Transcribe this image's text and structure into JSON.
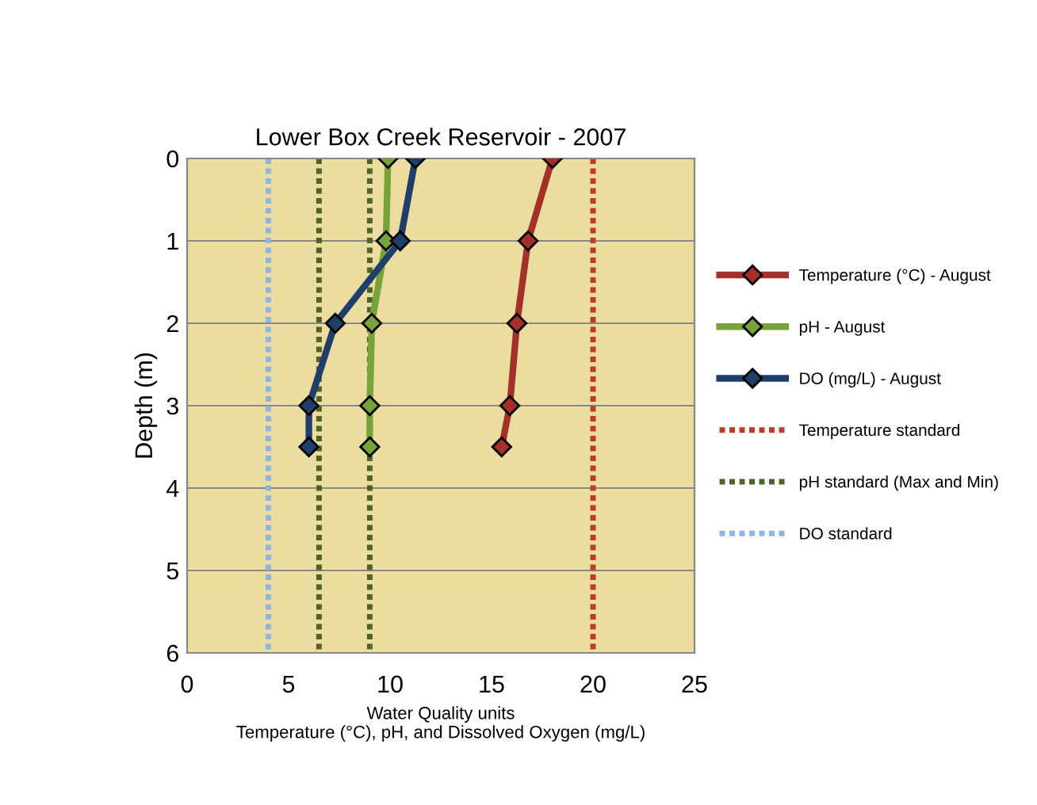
{
  "chart_data": {
    "type": "line",
    "title": "Lower Box Creek Reservoir - 2007",
    "xlabel": "Water Quality units\nTemperature (°C), pH, and Dissolved Oxygen (mg/L)",
    "ylabel": "Depth (m)",
    "series": [
      {
        "name": "Temperature (°C) - August",
        "color": "#a5302a",
        "x": [
          18.0,
          16.8,
          16.25,
          15.9,
          15.5
        ],
        "values": [
          0,
          1,
          2,
          3,
          3.5
        ]
      },
      {
        "name": "pH - August",
        "color": "#77a33a",
        "x": [
          9.9,
          9.8,
          9.1,
          9.0,
          9.0
        ],
        "values": [
          0,
          1,
          2,
          3,
          3.5
        ]
      },
      {
        "name": "DO (mg/L) - August",
        "color": "#1f3f6b",
        "x": [
          11.25,
          10.5,
          7.3,
          6.0,
          6.0
        ],
        "values": [
          0,
          1,
          2,
          3,
          3.5
        ]
      },
      {
        "name": "Temperature standard",
        "color": "#c0392b",
        "x": [
          20,
          20
        ],
        "values": [
          0,
          6
        ],
        "marker": "none",
        "line_style": "dotted"
      },
      {
        "name": "pH standard (Max and Min)",
        "color": "#4f6228",
        "x": [
          9,
          9,
          null,
          6.5,
          6.5
        ],
        "values": [
          0,
          6,
          null,
          0,
          6
        ],
        "marker": "none",
        "line_style": "dotted"
      },
      {
        "name": "DO standard",
        "color": "#8db4e2",
        "x": [
          4,
          4
        ],
        "values": [
          0,
          6
        ],
        "marker": "none",
        "line_style": "dotted"
      }
    ],
    "xlim": [
      0,
      25
    ],
    "xticks": [
      0,
      5,
      10,
      15,
      20,
      25
    ],
    "ylim": [
      6,
      0
    ],
    "yticks": [
      0,
      1,
      2,
      3,
      4,
      5,
      6
    ],
    "grid": "y",
    "legend": "right",
    "marker": "diamond",
    "line_style": "solid"
  }
}
